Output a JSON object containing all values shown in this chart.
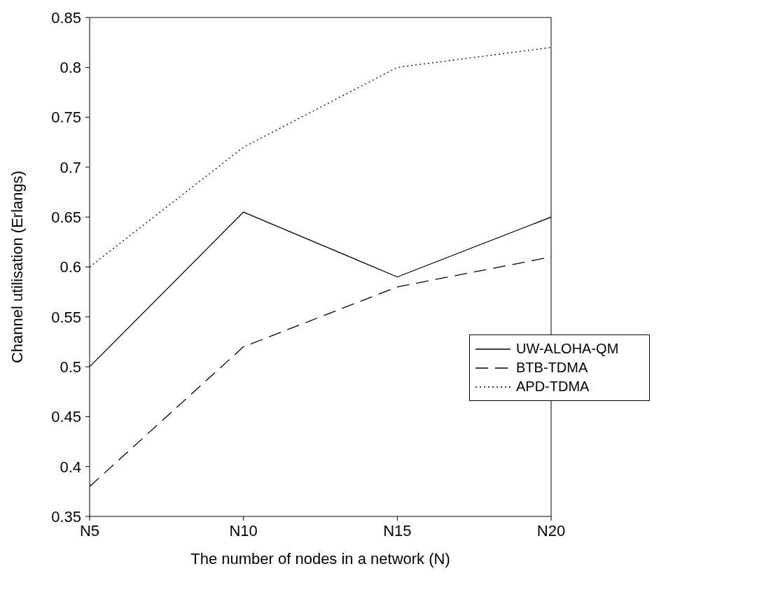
{
  "chart_data": {
    "type": "line",
    "xlabel": "The number of nodes in a network (N)",
    "ylabel": "Channel utilisation (Erlangs)",
    "categories": [
      "N5",
      "N10",
      "N15",
      "N20"
    ],
    "ylim": [
      0.35,
      0.85
    ],
    "yticks": [
      {
        "value": 0.35,
        "label": "0.35"
      },
      {
        "value": 0.4,
        "label": "0.4"
      },
      {
        "value": 0.45,
        "label": "0.45"
      },
      {
        "value": 0.5,
        "label": "0.5"
      },
      {
        "value": 0.55,
        "label": "0.55"
      },
      {
        "value": 0.6,
        "label": "0.6"
      },
      {
        "value": 0.65,
        "label": "0.65"
      },
      {
        "value": 0.7,
        "label": "0.7"
      },
      {
        "value": 0.75,
        "label": "0.75"
      },
      {
        "value": 0.8,
        "label": "0.8"
      },
      {
        "value": 0.85,
        "label": "0.85"
      }
    ],
    "grid": false,
    "legend": "right",
    "marker": "none",
    "series": [
      {
        "name": "UW-ALOHA-QM",
        "color": "#000000",
        "line_style": "solid",
        "values": [
          0.5,
          0.655,
          0.59,
          0.65
        ]
      },
      {
        "name": "BTB-TDMA",
        "color": "#000000",
        "line_style": "dashed",
        "values": [
          0.38,
          0.52,
          0.58,
          0.61
        ]
      },
      {
        "name": "APD-TDMA",
        "color": "#000000",
        "line_style": "dotted",
        "values": [
          0.6,
          0.72,
          0.8,
          0.82
        ]
      }
    ]
  }
}
